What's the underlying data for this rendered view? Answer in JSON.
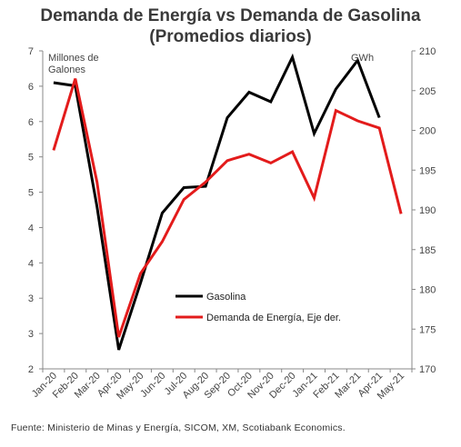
{
  "title_line1": "Demanda de Energía vs Demanda de Gasolina",
  "title_line2": "(Promedios diarios)",
  "left_unit": [
    "Millones de",
    "Galones"
  ],
  "right_unit": "GWh",
  "source": "Fuente: Ministerio de Minas y Energía, SICOM, XM,  Scotiabank Economics.",
  "chart_data": {
    "type": "line",
    "categories": [
      "Jan-20",
      "Feb-20",
      "Mar-20",
      "Apr-20",
      "May-20",
      "Jun-20",
      "Jul-20",
      "Aug-20",
      "Sep-20",
      "Oct-20",
      "Nov-20",
      "Dec-20",
      "Jan-21",
      "Feb-21",
      "Mar-21",
      "Apr-21",
      "May-21"
    ],
    "left_axis": {
      "ylim": [
        2,
        7
      ],
      "tick_labels": [
        "2",
        "3",
        "3",
        "4",
        "4",
        "5",
        "5",
        "6",
        "6",
        "7"
      ]
    },
    "right_axis": {
      "ylim": [
        170,
        210
      ],
      "ticks": [
        170,
        175,
        180,
        185,
        190,
        195,
        200,
        205,
        210
      ]
    },
    "series": [
      {
        "name": "Gasolina",
        "axis": "left",
        "color": "#000000",
        "values": [
          6.5,
          6.45,
          4.55,
          2.3,
          3.35,
          4.45,
          4.85,
          4.87,
          5.95,
          6.35,
          6.2,
          6.9,
          5.7,
          6.4,
          6.85,
          5.95,
          null
        ]
      },
      {
        "name": "Demanda de Energía, Eje der.",
        "axis": "right",
        "color": "#e31b1b",
        "values": [
          197.5,
          206.5,
          193.5,
          174.0,
          182.0,
          186.0,
          191.3,
          193.5,
          196.2,
          197.0,
          195.9,
          197.3,
          191.5,
          202.5,
          201.2,
          200.3,
          189.5
        ]
      }
    ],
    "legend": "center-right",
    "grid": false
  }
}
